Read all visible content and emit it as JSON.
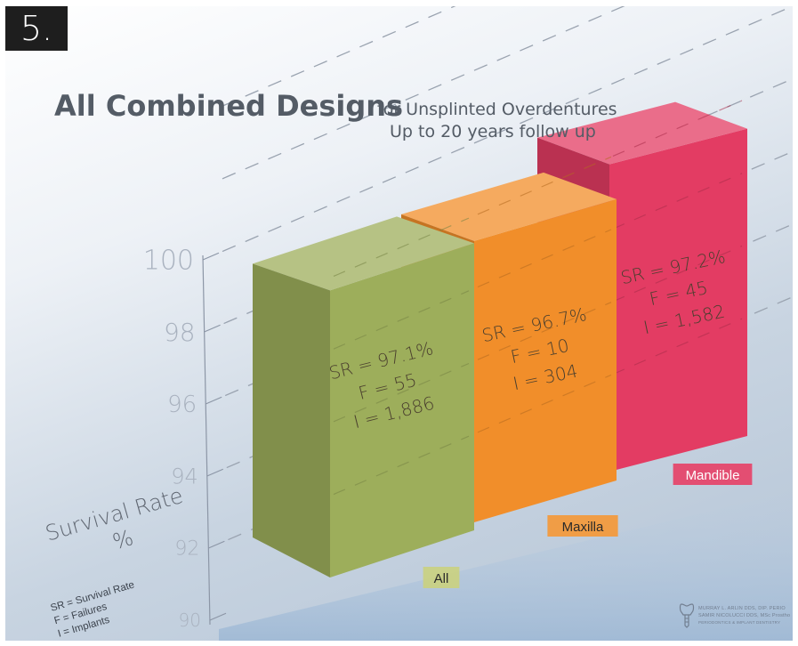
{
  "slide_number": "5.",
  "logo": {
    "line1": "MURRAY L. ARLIN DDS, DIP. PERIO",
    "line2": "SAMIR NICOLUCCI DDS, MSc Prostho",
    "line3": "PERIODONTICS & IMPLANT DENTISTRY"
  },
  "colors": {
    "all": "#9dae5b",
    "maxilla": "#f18e2a",
    "mandible": "#e33c63"
  },
  "chart_data": {
    "type": "bar",
    "title": "All Combined Designs",
    "subtitle": [
      "for Unsplinted Overdentures",
      "Up to 20 years follow up"
    ],
    "ylabel": [
      "Survival Rate",
      "%"
    ],
    "yticks": [
      90,
      92,
      94,
      96,
      98,
      100
    ],
    "ylim": [
      90,
      100
    ],
    "categories": [
      "All",
      "Maxilla",
      "Mandible"
    ],
    "values": [
      97.1,
      96.7,
      97.2
    ],
    "bar_labels": [
      [
        "SR = 97.1%",
        "F = 55",
        "I = 1,886"
      ],
      [
        "SR = 96.7%",
        "F = 10",
        "I = 304"
      ],
      [
        "SR = 97.2%",
        "F = 45",
        "I = 1,582"
      ]
    ],
    "legend": [
      "SR = Survival Rate",
      "F = Failures",
      "I = Implants"
    ],
    "grid": true
  }
}
